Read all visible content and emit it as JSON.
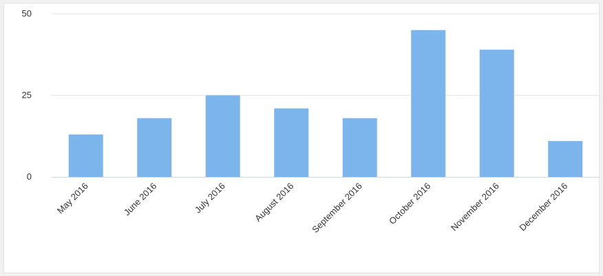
{
  "chart_data": {
    "type": "bar",
    "categories": [
      "May 2016",
      "June 2016",
      "July 2016",
      "August 2016",
      "September 2016",
      "October 2016",
      "November 2016",
      "December 2016"
    ],
    "values": [
      13,
      18,
      25,
      21,
      18,
      45,
      39,
      11
    ],
    "yticks": [
      "0",
      "25",
      "50"
    ],
    "ylim": [
      0,
      50
    ],
    "title": "",
    "xlabel": "",
    "ylabel": "",
    "grid": true,
    "legend": "none",
    "colors": {
      "bar": "#7cb5ec",
      "grid": "#e6e6e6",
      "axis": "#ccd6eb",
      "text": "#333333"
    }
  }
}
